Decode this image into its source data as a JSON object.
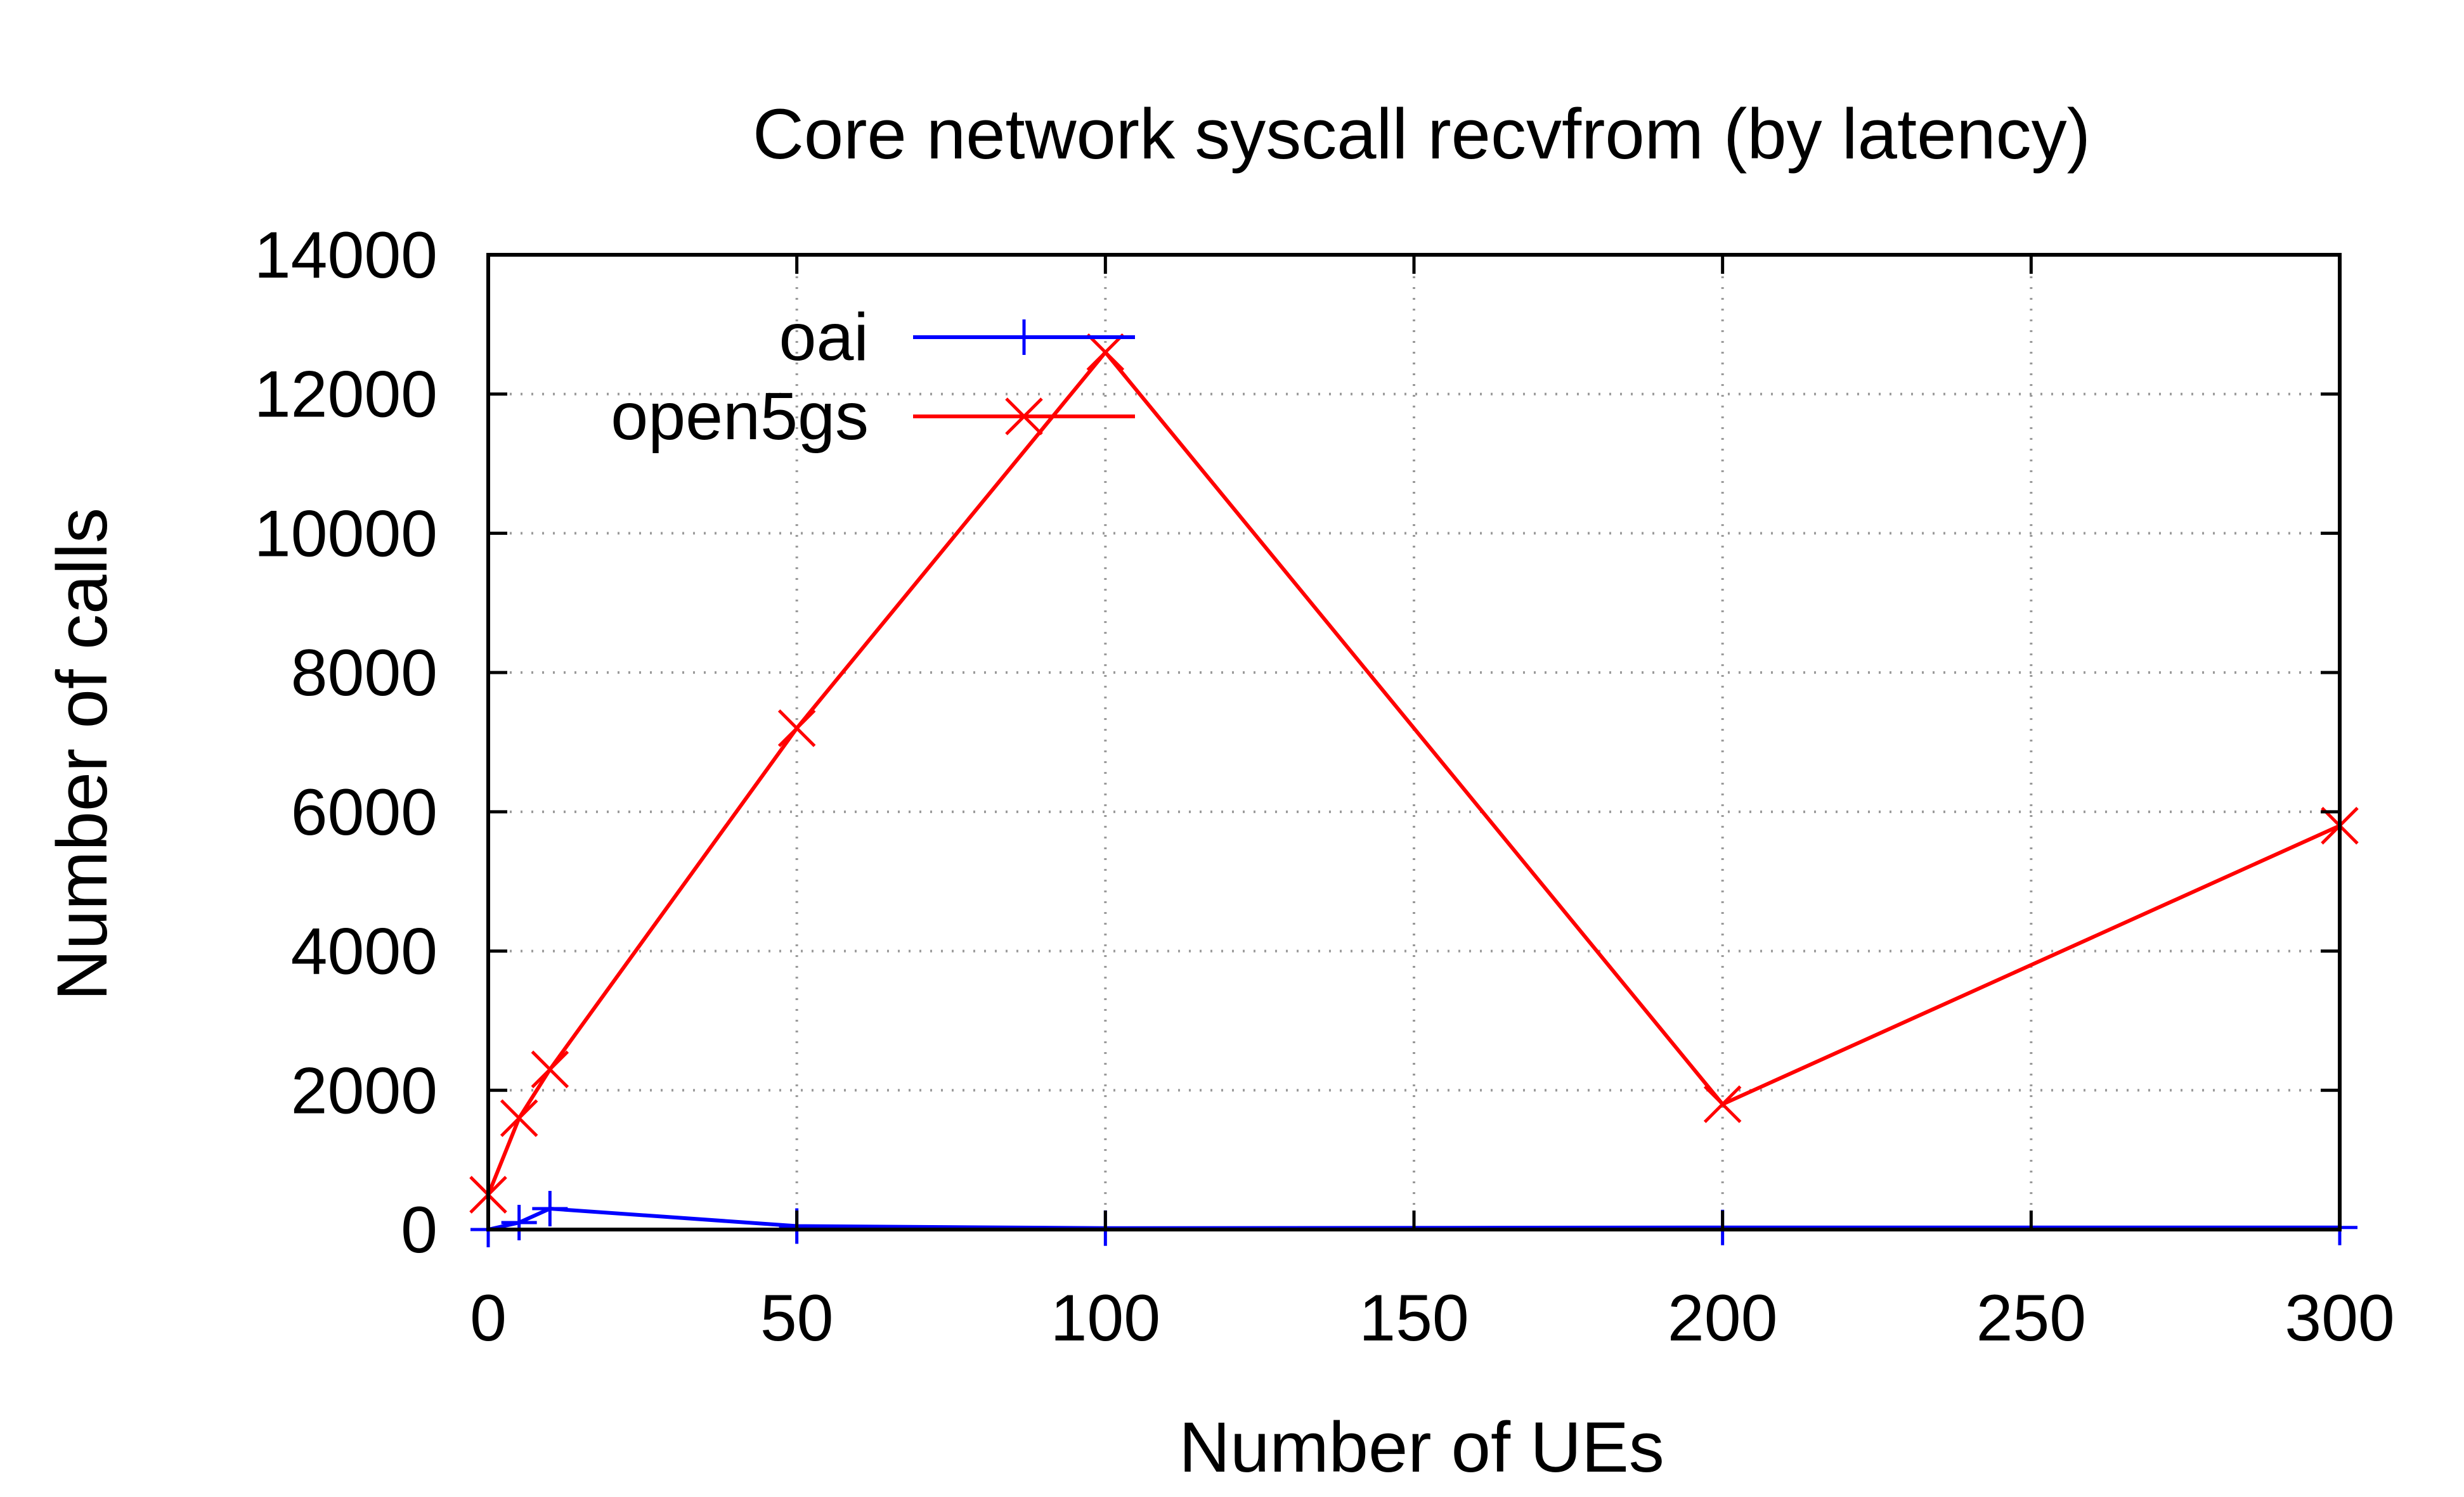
{
  "chart_data": {
    "type": "line",
    "title": "Core network syscall recvfrom (by latency)",
    "xlabel": "Number of UEs",
    "ylabel": "Number of calls",
    "xlim": [
      0,
      300
    ],
    "ylim": [
      0,
      14000
    ],
    "x_ticks": [
      0,
      50,
      100,
      150,
      200,
      250,
      300
    ],
    "y_ticks": [
      0,
      2000,
      4000,
      6000,
      8000,
      10000,
      12000,
      14000
    ],
    "grid": true,
    "legend_position": "top-left",
    "series": [
      {
        "name": "oai",
        "color": "#0000ff",
        "marker": "plus",
        "x": [
          0,
          5,
          10,
          50,
          100,
          200,
          300
        ],
        "y": [
          0,
          100,
          300,
          50,
          20,
          30,
          30
        ]
      },
      {
        "name": "open5gs",
        "color": "#ff0000",
        "marker": "cross",
        "x": [
          0,
          5,
          10,
          50,
          100,
          200,
          300
        ],
        "y": [
          500,
          1600,
          2300,
          7200,
          12600,
          1800,
          5800
        ]
      }
    ]
  }
}
